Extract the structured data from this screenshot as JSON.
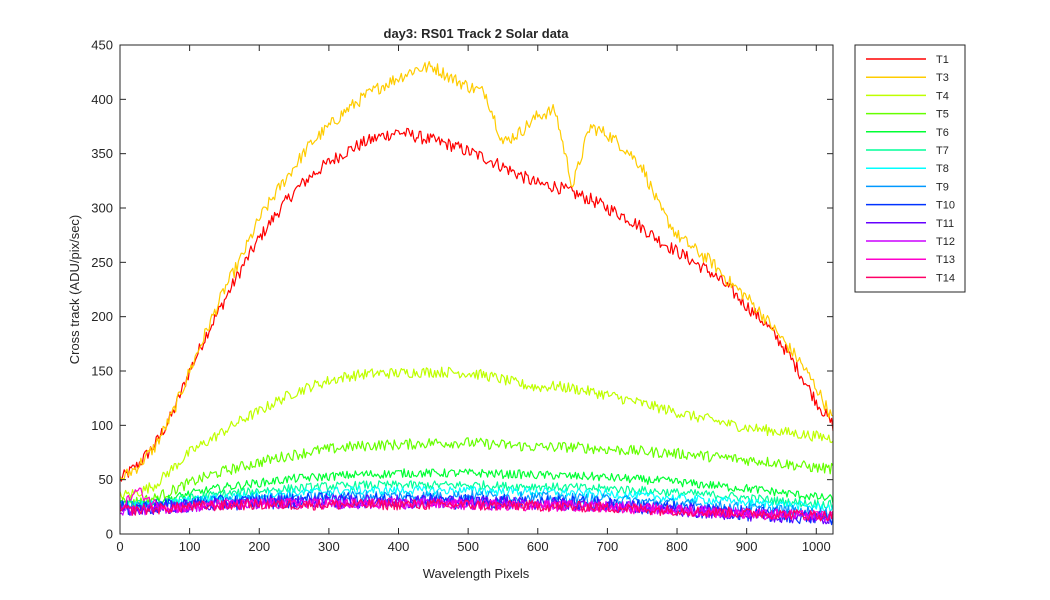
{
  "chart_data": {
    "type": "line",
    "title": "day3: RS01  Track 2 Solar data",
    "xlabel": "Wavelength Pixels",
    "ylabel": "Cross track (ADU/pix/sec)",
    "xlim": [
      0,
      1024
    ],
    "ylim": [
      0,
      450
    ],
    "xticks": [
      0,
      100,
      200,
      300,
      400,
      500,
      600,
      700,
      800,
      900,
      1000
    ],
    "yticks": [
      0,
      50,
      100,
      150,
      200,
      250,
      300,
      350,
      400,
      450
    ],
    "grid": false,
    "legend_position": "outside-top-right",
    "x": [
      0,
      25,
      50,
      75,
      100,
      125,
      150,
      175,
      200,
      225,
      250,
      275,
      300,
      325,
      350,
      375,
      400,
      425,
      450,
      475,
      500,
      525,
      550,
      575,
      600,
      625,
      650,
      675,
      700,
      725,
      750,
      775,
      800,
      825,
      850,
      875,
      900,
      925,
      950,
      975,
      1000,
      1024
    ],
    "series": [
      {
        "name": "T1",
        "color": "#ff0000",
        "noise": 6,
        "values": [
          50,
          63,
          82,
          110,
          150,
          185,
          215,
          245,
          272,
          295,
          315,
          330,
          342,
          352,
          360,
          366,
          370,
          366,
          362,
          358,
          352,
          346,
          338,
          330,
          322,
          320,
          314,
          308,
          300,
          292,
          282,
          270,
          260,
          250,
          240,
          226,
          210,
          195,
          175,
          150,
          122,
          100
        ]
      },
      {
        "name": "T3",
        "color": "#ffcc00",
        "noise": 6,
        "values": [
          50,
          62,
          80,
          110,
          150,
          188,
          225,
          255,
          290,
          315,
          338,
          360,
          375,
          390,
          402,
          412,
          420,
          428,
          430,
          420,
          412,
          406,
          360,
          370,
          385,
          390,
          320,
          375,
          368,
          355,
          338,
          300,
          275,
          262,
          250,
          232,
          218,
          200,
          180,
          160,
          135,
          105
        ]
      },
      {
        "name": "T4",
        "color": "#bfff00",
        "noise": 5,
        "values": [
          35,
          38,
          45,
          60,
          75,
          85,
          95,
          105,
          113,
          122,
          130,
          136,
          141,
          145,
          147,
          148,
          148,
          149,
          149,
          149,
          148,
          146,
          142,
          138,
          135,
          136,
          134,
          131,
          128,
          124,
          120,
          116,
          112,
          108,
          105,
          101,
          98,
          96,
          94,
          92,
          90,
          88
        ]
      },
      {
        "name": "T5",
        "color": "#66ff00",
        "noise": 5,
        "values": [
          30,
          30,
          33,
          40,
          47,
          53,
          58,
          62,
          66,
          70,
          73,
          76,
          78,
          80,
          81,
          82,
          82,
          83,
          84,
          84,
          84,
          83,
          82,
          81,
          80,
          80,
          80,
          79,
          78,
          77,
          76,
          75,
          74,
          73,
          71,
          70,
          68,
          67,
          65,
          63,
          61,
          60
        ]
      },
      {
        "name": "T6",
        "color": "#00ff33",
        "noise": 4,
        "values": [
          28,
          28,
          29,
          33,
          37,
          40,
          43,
          45,
          47,
          49,
          51,
          52,
          53,
          54,
          55,
          55,
          56,
          56,
          56,
          56,
          56,
          56,
          55,
          55,
          54,
          54,
          53,
          53,
          52,
          51,
          50,
          49,
          48,
          46,
          45,
          43,
          42,
          40,
          38,
          36,
          34,
          32
        ]
      },
      {
        "name": "T7",
        "color": "#00ff99",
        "noise": 4,
        "values": [
          27,
          27,
          28,
          30,
          33,
          35,
          37,
          38,
          40,
          41,
          42,
          43,
          44,
          44,
          45,
          45,
          45,
          45,
          45,
          45,
          45,
          45,
          44,
          44,
          44,
          43,
          43,
          42,
          42,
          41,
          40,
          39,
          38,
          37,
          36,
          35,
          33,
          32,
          30,
          29,
          28,
          27
        ]
      },
      {
        "name": "T8",
        "color": "#00ffff",
        "noise": 4,
        "values": [
          26,
          26,
          27,
          29,
          31,
          32,
          34,
          35,
          36,
          37,
          38,
          39,
          39,
          40,
          40,
          40,
          40,
          40,
          40,
          40,
          40,
          40,
          39,
          39,
          39,
          38,
          38,
          37,
          37,
          36,
          35,
          34,
          33,
          32,
          31,
          30,
          29,
          28,
          27,
          26,
          25,
          24
        ]
      },
      {
        "name": "T9",
        "color": "#0099ff",
        "noise": 5,
        "values": [
          25,
          25,
          26,
          27,
          29,
          30,
          31,
          32,
          33,
          33,
          34,
          34,
          35,
          35,
          35,
          35,
          35,
          35,
          35,
          35,
          35,
          35,
          34,
          34,
          34,
          33,
          33,
          32,
          32,
          31,
          30,
          29,
          28,
          27,
          26,
          25,
          24,
          23,
          22,
          21,
          20,
          19
        ]
      },
      {
        "name": "T10",
        "color": "#0033ff",
        "noise": 7,
        "values": [
          24,
          24,
          25,
          26,
          27,
          28,
          29,
          29,
          30,
          30,
          30,
          31,
          31,
          31,
          31,
          31,
          31,
          31,
          31,
          30,
          30,
          30,
          30,
          29,
          29,
          29,
          28,
          28,
          27,
          26,
          25,
          24,
          23,
          22,
          21,
          20,
          19,
          18,
          17,
          16,
          15,
          15
        ]
      },
      {
        "name": "T11",
        "color": "#6600ff",
        "noise": 6,
        "values": [
          23,
          23,
          24,
          25,
          26,
          27,
          28,
          28,
          29,
          29,
          29,
          30,
          30,
          30,
          30,
          30,
          30,
          30,
          30,
          29,
          29,
          29,
          29,
          28,
          28,
          28,
          27,
          27,
          26,
          25,
          24,
          23,
          22,
          21,
          20,
          19,
          18,
          17,
          16,
          16,
          15,
          15
        ]
      },
      {
        "name": "T12",
        "color": "#cc00ff",
        "noise": 5,
        "values": [
          22,
          22,
          23,
          24,
          25,
          26,
          27,
          27,
          28,
          28,
          28,
          28,
          28,
          28,
          28,
          28,
          28,
          28,
          28,
          28,
          27,
          27,
          27,
          27,
          27,
          26,
          26,
          26,
          26,
          25,
          24,
          23,
          22,
          21,
          21,
          20,
          19,
          18,
          18,
          17,
          17,
          16
        ]
      },
      {
        "name": "T13",
        "color": "#ff00cc",
        "noise": 5,
        "values": [
          24,
          40,
          28,
          24,
          25,
          26,
          27,
          27,
          28,
          28,
          28,
          28,
          28,
          28,
          28,
          28,
          28,
          28,
          28,
          27,
          27,
          27,
          27,
          26,
          26,
          26,
          26,
          25,
          25,
          24,
          23,
          22,
          22,
          21,
          20,
          20,
          19,
          18,
          18,
          17,
          17,
          16
        ]
      },
      {
        "name": "T14",
        "color": "#ff0066",
        "noise": 5,
        "values": [
          22,
          22,
          23,
          24,
          25,
          26,
          26,
          27,
          27,
          27,
          27,
          27,
          27,
          27,
          27,
          27,
          27,
          27,
          27,
          27,
          27,
          26,
          26,
          26,
          26,
          25,
          25,
          25,
          24,
          24,
          23,
          22,
          22,
          21,
          20,
          20,
          19,
          19,
          18,
          18,
          17,
          17
        ]
      }
    ]
  }
}
